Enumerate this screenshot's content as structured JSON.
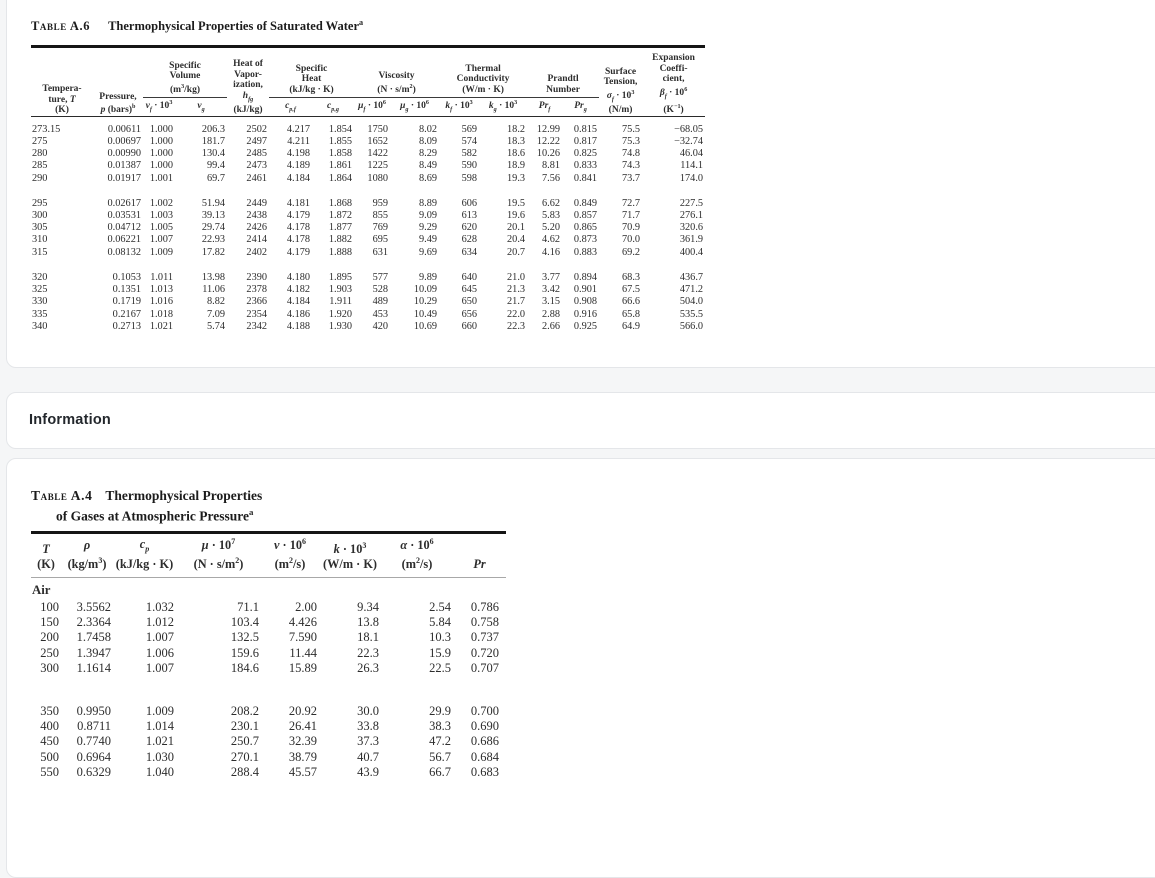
{
  "colors": {
    "page_background": "#f5f6f7",
    "card_background": "#ffffff",
    "card_border": "#e4e6e9",
    "scan_text": "#2d2d2d"
  },
  "information": {
    "title": "Information"
  },
  "table_a6": {
    "title": {
      "label": "Table A.6",
      "caption_html": "Thermophysical Properties of Saturated Water<sup>a</sup>"
    },
    "headers": {
      "temperature": "Tempera-<br>ture, <i>T</i><br>(K)",
      "pressure": "Pressure,<br><i>p</i> (bars)<sup>b</sup>",
      "specific_volume": "Specific<br>Volume<br>(m<sup>3</sup>/kg)",
      "v_f": "<i>v<sub>f</sub></i> · 10<sup>3</sup>",
      "v_g": "<i>v<sub>g</sub></i>",
      "heat_of_vaporization": "Heat of<br>Vapor-<br>ization,<br><i>h<sub>fg</sub></i><br>(kJ/kg)",
      "specific_heat": "Specific<br>Heat<br>(kJ/kg · K)",
      "c_p_f": "<i>c<sub>p,f</sub></i>",
      "c_p_g": "<i>c<sub>p,g</sub></i>",
      "viscosity": "Viscosity<br>(N · s/m<sup>2</sup>)",
      "mu_f": "<i>μ<sub>f</sub></i> · 10<sup>6</sup>",
      "mu_g": "<i>μ<sub>g</sub></i> · 10<sup>6</sup>",
      "thermal_conductivity": "Thermal<br>Conductivity<br>(W/m · K)",
      "k_f": "<i>k<sub>f</sub></i> · 10<sup>3</sup>",
      "k_g": "<i>k<sub>g</sub></i> · 10<sup>3</sup>",
      "prandtl_number": "Prandtl<br>Number",
      "pr_f": "<i>Pr<sub>f</sub></i>",
      "pr_g": "<i>Pr<sub>g</sub></i>",
      "surface_tension": "Surface<br>Tension,<br><i>σ<sub>f</sub></i> · 10<sup>3</sup><br>(N/m)",
      "expansion_coefficient": "Expansion<br>Coeffi-<br>cient,<br><i>β<sub>f</sub></i> · 10<sup>6</sup><br>(K<sup>−1</sup>)"
    },
    "groups": [
      [
        [
          "273.15",
          "0.00611",
          "1.000",
          "206.3",
          "2502",
          "4.217",
          "1.854",
          "1750",
          "8.02",
          "569",
          "18.2",
          "12.99",
          "0.815",
          "75.5",
          "−68.05"
        ],
        [
          "275",
          "0.00697",
          "1.000",
          "181.7",
          "2497",
          "4.211",
          "1.855",
          "1652",
          "8.09",
          "574",
          "18.3",
          "12.22",
          "0.817",
          "75.3",
          "−32.74"
        ],
        [
          "280",
          "0.00990",
          "1.000",
          "130.4",
          "2485",
          "4.198",
          "1.858",
          "1422",
          "8.29",
          "582",
          "18.6",
          "10.26",
          "0.825",
          "74.8",
          "46.04"
        ],
        [
          "285",
          "0.01387",
          "1.000",
          "99.4",
          "2473",
          "4.189",
          "1.861",
          "1225",
          "8.49",
          "590",
          "18.9",
          "8.81",
          "0.833",
          "74.3",
          "114.1"
        ],
        [
          "290",
          "0.01917",
          "1.001",
          "69.7",
          "2461",
          "4.184",
          "1.864",
          "1080",
          "8.69",
          "598",
          "19.3",
          "7.56",
          "0.841",
          "73.7",
          "174.0"
        ]
      ],
      [
        [
          "295",
          "0.02617",
          "1.002",
          "51.94",
          "2449",
          "4.181",
          "1.868",
          "959",
          "8.89",
          "606",
          "19.5",
          "6.62",
          "0.849",
          "72.7",
          "227.5"
        ],
        [
          "300",
          "0.03531",
          "1.003",
          "39.13",
          "2438",
          "4.179",
          "1.872",
          "855",
          "9.09",
          "613",
          "19.6",
          "5.83",
          "0.857",
          "71.7",
          "276.1"
        ],
        [
          "305",
          "0.04712",
          "1.005",
          "29.74",
          "2426",
          "4.178",
          "1.877",
          "769",
          "9.29",
          "620",
          "20.1",
          "5.20",
          "0.865",
          "70.9",
          "320.6"
        ],
        [
          "310",
          "0.06221",
          "1.007",
          "22.93",
          "2414",
          "4.178",
          "1.882",
          "695",
          "9.49",
          "628",
          "20.4",
          "4.62",
          "0.873",
          "70.0",
          "361.9"
        ],
        [
          "315",
          "0.08132",
          "1.009",
          "17.82",
          "2402",
          "4.179",
          "1.888",
          "631",
          "9.69",
          "634",
          "20.7",
          "4.16",
          "0.883",
          "69.2",
          "400.4"
        ]
      ],
      [
        [
          "320",
          "0.1053",
          "1.011",
          "13.98",
          "2390",
          "4.180",
          "1.895",
          "577",
          "9.89",
          "640",
          "21.0",
          "3.77",
          "0.894",
          "68.3",
          "436.7"
        ],
        [
          "325",
          "0.1351",
          "1.013",
          "11.06",
          "2378",
          "4.182",
          "1.903",
          "528",
          "10.09",
          "645",
          "21.3",
          "3.42",
          "0.901",
          "67.5",
          "471.2"
        ],
        [
          "330",
          "0.1719",
          "1.016",
          "8.82",
          "2366",
          "4.184",
          "1.911",
          "489",
          "10.29",
          "650",
          "21.7",
          "3.15",
          "0.908",
          "66.6",
          "504.0"
        ],
        [
          "335",
          "0.2167",
          "1.018",
          "7.09",
          "2354",
          "4.186",
          "1.920",
          "453",
          "10.49",
          "656",
          "22.0",
          "2.88",
          "0.916",
          "65.8",
          "535.5"
        ],
        [
          "340",
          "0.2713",
          "1.021",
          "5.74",
          "2342",
          "4.188",
          "1.930",
          "420",
          "10.69",
          "660",
          "22.3",
          "2.66",
          "0.925",
          "64.9",
          "566.0"
        ]
      ]
    ]
  },
  "table_a4": {
    "title": {
      "label": "Table A.4",
      "caption_line1_html": "Thermophysical Properties",
      "caption_line2_html": "of Gases at Atmospheric Pressure<sup>a</sup>"
    },
    "headers": {
      "t": "<i>T</i><br>(K)",
      "rho": "<i>ρ</i><br>(kg/m<sup>3</sup>)",
      "cp": "<i>c<sub>p</sub></i><br>(kJ/kg · K)",
      "mu": "<i>μ</i> · 10<sup>7</sup><br>(N · s/m<sup>2</sup>)",
      "nu": "<i>ν</i> · 10<sup>6</sup><br>(m<sup>2</sup>/s)",
      "k": "<i>k</i> · 10<sup>3</sup><br>(W/m · K)",
      "alpha": "<i>α</i> · 10<sup>6</sup><br>(m<sup>2</sup>/s)",
      "pr": "<i>Pr</i>"
    },
    "section_label": "Air",
    "groups": [
      [
        [
          "100",
          "3.5562",
          "1.032",
          "71.1",
          "2.00",
          "9.34",
          "2.54",
          "0.786"
        ],
        [
          "150",
          "2.3364",
          "1.012",
          "103.4",
          "4.426",
          "13.8",
          "5.84",
          "0.758"
        ],
        [
          "200",
          "1.7458",
          "1.007",
          "132.5",
          "7.590",
          "18.1",
          "10.3",
          "0.737"
        ],
        [
          "250",
          "1.3947",
          "1.006",
          "159.6",
          "11.44",
          "22.3",
          "15.9",
          "0.720"
        ],
        [
          "300",
          "1.1614",
          "1.007",
          "184.6",
          "15.89",
          "26.3",
          "22.5",
          "0.707"
        ]
      ],
      [
        [
          "350",
          "0.9950",
          "1.009",
          "208.2",
          "20.92",
          "30.0",
          "29.9",
          "0.700"
        ],
        [
          "400",
          "0.8711",
          "1.014",
          "230.1",
          "26.41",
          "33.8",
          "38.3",
          "0.690"
        ],
        [
          "450",
          "0.7740",
          "1.021",
          "250.7",
          "32.39",
          "37.3",
          "47.2",
          "0.686"
        ],
        [
          "500",
          "0.6964",
          "1.030",
          "270.1",
          "38.79",
          "40.7",
          "56.7",
          "0.684"
        ],
        [
          "550",
          "0.6329",
          "1.040",
          "288.4",
          "45.57",
          "43.9",
          "66.7",
          "0.683"
        ]
      ]
    ]
  }
}
